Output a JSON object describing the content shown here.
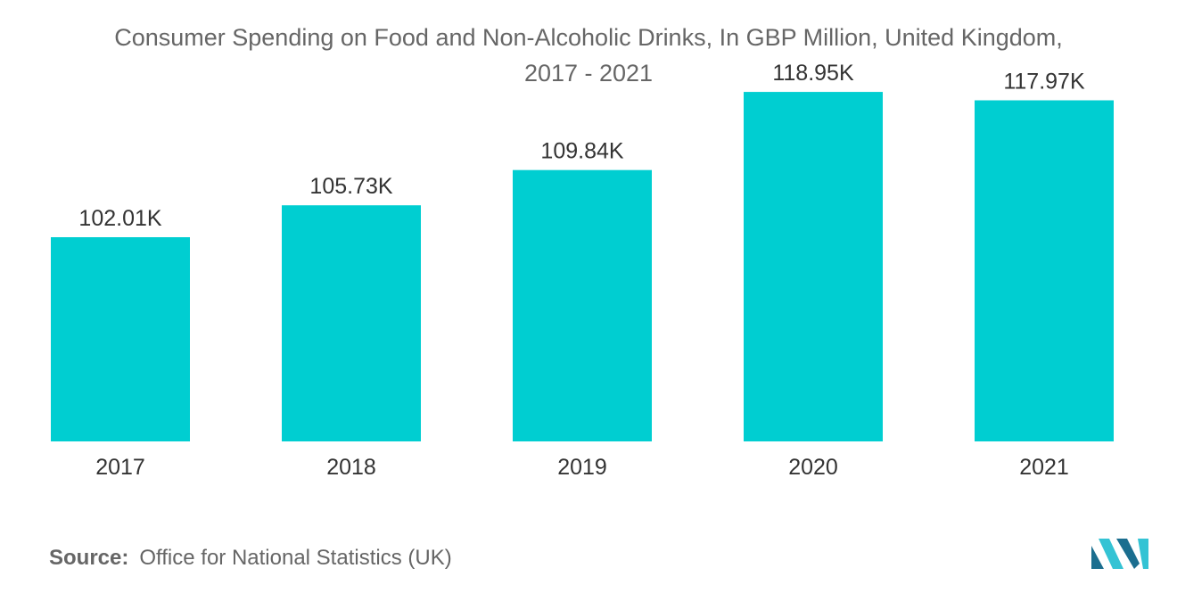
{
  "title_line1": "Consumer Spending on Food and Non-Alcoholic Drinks, In GBP Million, United Kingdom,",
  "title_line2": "2017 - 2021",
  "source_label": "Source:",
  "source_text": "Office for National Statistics (UK)",
  "colors": {
    "bar": "#00CED1",
    "text": "#333333",
    "muted": "#666666",
    "logo_dark": "#1b6e8f",
    "logo_light": "#34c3d4"
  },
  "chart_data": {
    "type": "bar",
    "title": "Consumer Spending on Food and Non-Alcoholic Drinks, In GBP Million, United Kingdom, 2017 - 2021",
    "xlabel": "",
    "ylabel": "",
    "categories": [
      "2017",
      "2018",
      "2019",
      "2020",
      "2021"
    ],
    "values": [
      102.01,
      105.73,
      109.84,
      118.95,
      117.97
    ],
    "value_labels": [
      "102.01K",
      "105.73K",
      "109.84K",
      "118.95K",
      "117.97K"
    ],
    "grid": false,
    "legend": "none"
  }
}
